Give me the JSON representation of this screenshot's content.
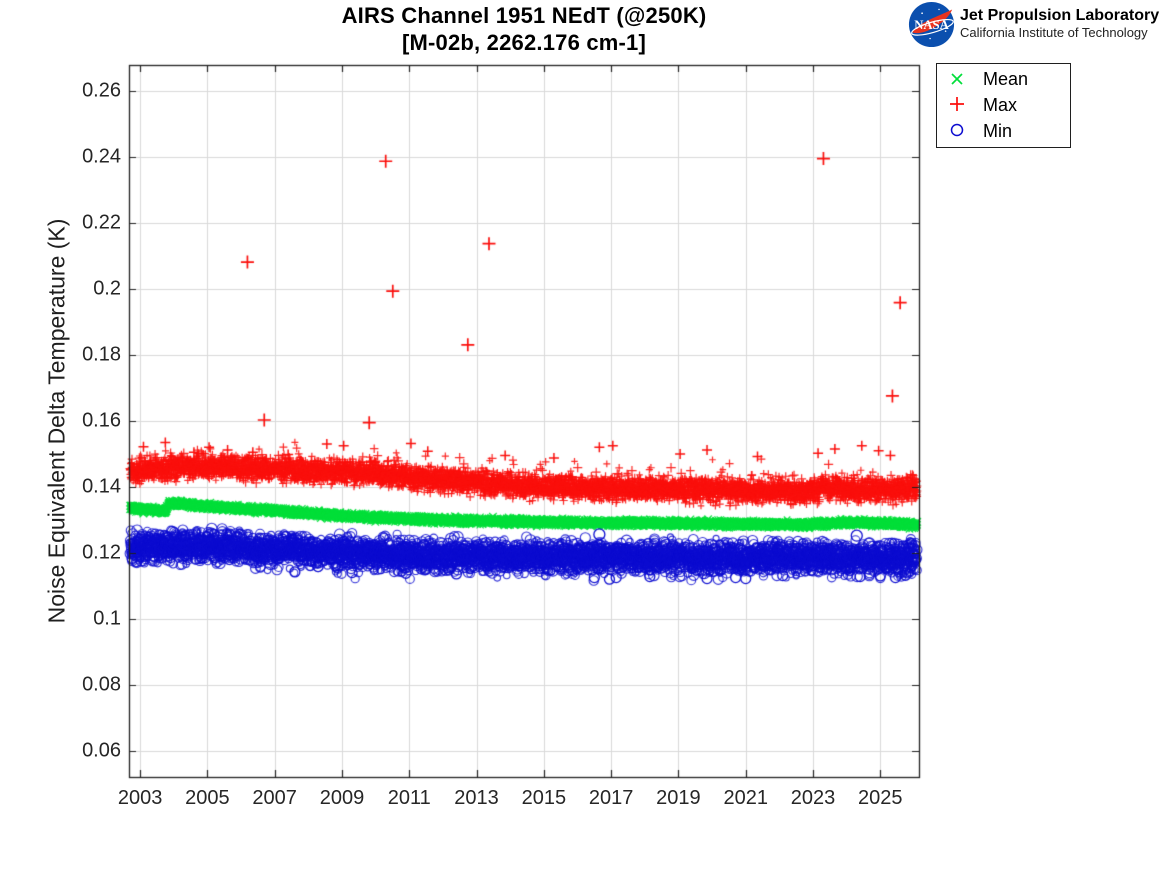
{
  "header": {
    "title_line1": "AIRS Channel 1951 NEdT (@250K)",
    "title_line2": "[M-02b, 2262.176 cm-1]"
  },
  "branding": {
    "logo_alt": "NASA",
    "org_line1": "Jet Propulsion Laboratory",
    "org_line2": "California Institute of Technology",
    "logo_blue": "#0b4fae",
    "logo_red": "#e8331f",
    "logo_text": "NASA"
  },
  "chart_data": {
    "type": "scatter",
    "title": "AIRS Channel 1951 NEdT (@250K)",
    "subtitle": "[M-02b, 2262.176 cm-1]",
    "xlabel": "",
    "ylabel": "Noise Equivalent Delta Temperature (K)",
    "xlim": [
      2002.67,
      2026.15
    ],
    "ylim": [
      0.052,
      0.268
    ],
    "x_range": [
      2002.7,
      2026.1
    ],
    "xticks": [
      2003,
      2005,
      2007,
      2009,
      2011,
      2013,
      2015,
      2017,
      2019,
      2021,
      2023,
      2025
    ],
    "ytick_values": [
      0.06,
      0.08,
      0.1,
      0.12,
      0.14,
      0.16,
      0.18,
      0.2,
      0.22,
      0.24,
      0.26
    ],
    "ytick_labels": [
      "0.06",
      "0.08",
      "0.1",
      "0.12",
      "0.14",
      "0.16",
      "0.18",
      "0.2",
      "0.22",
      "0.24",
      "0.26"
    ],
    "grid": true,
    "grid_color": "#d9d9d9",
    "axis_color": "#1f1f1f",
    "legend": {
      "position": "top-right",
      "entries": [
        "Mean",
        "Max",
        "Min"
      ]
    },
    "series": [
      {
        "name": "Mean",
        "marker": "x",
        "color": "#00df3a",
        "n": 6500,
        "sigma": 0.0005,
        "trend": [
          [
            2002.7,
            0.1337
          ],
          [
            2003.2,
            0.1332
          ],
          [
            2003.78,
            0.1326
          ],
          [
            2003.85,
            0.135
          ],
          [
            2004.4,
            0.1347
          ],
          [
            2005.0,
            0.1342
          ],
          [
            2006.0,
            0.1334
          ],
          [
            2007.0,
            0.1327
          ],
          [
            2008.0,
            0.132
          ],
          [
            2009.0,
            0.1313
          ],
          [
            2010.0,
            0.1307
          ],
          [
            2011.0,
            0.1303
          ],
          [
            2012.0,
            0.13
          ],
          [
            2013.0,
            0.1297
          ],
          [
            2014.0,
            0.1295
          ],
          [
            2015.5,
            0.1292
          ],
          [
            2017.0,
            0.1291
          ],
          [
            2018.5,
            0.129
          ],
          [
            2020.0,
            0.1289
          ],
          [
            2021.5,
            0.1287
          ],
          [
            2022.8,
            0.1286
          ],
          [
            2023.5,
            0.129
          ],
          [
            2024.5,
            0.1292
          ],
          [
            2025.3,
            0.1289
          ],
          [
            2026.1,
            0.1284
          ]
        ]
      },
      {
        "name": "Max",
        "marker": "+",
        "color": "#fb0f0c",
        "n": 5200,
        "sigma": 0.0017,
        "trend": [
          [
            2002.7,
            0.1448
          ],
          [
            2003.3,
            0.1452
          ],
          [
            2004.0,
            0.146
          ],
          [
            2004.8,
            0.1462
          ],
          [
            2005.8,
            0.1458
          ],
          [
            2007.0,
            0.1452
          ],
          [
            2008.0,
            0.1448
          ],
          [
            2009.0,
            0.1444
          ],
          [
            2010.0,
            0.1438
          ],
          [
            2011.0,
            0.143
          ],
          [
            2012.0,
            0.142
          ],
          [
            2013.0,
            0.1412
          ],
          [
            2014.0,
            0.1406
          ],
          [
            2015.0,
            0.14
          ],
          [
            2016.0,
            0.1397
          ],
          [
            2017.0,
            0.1394
          ],
          [
            2018.0,
            0.1393
          ],
          [
            2019.0,
            0.1392
          ],
          [
            2020.0,
            0.139
          ],
          [
            2021.0,
            0.1388
          ],
          [
            2022.0,
            0.1386
          ],
          [
            2023.0,
            0.1388
          ],
          [
            2023.5,
            0.1398
          ],
          [
            2024.0,
            0.139
          ],
          [
            2024.7,
            0.1392
          ],
          [
            2025.4,
            0.1388
          ],
          [
            2026.1,
            0.1398
          ]
        ],
        "outliers": [
          [
            2006.19,
            0.2082
          ],
          [
            2006.69,
            0.1603
          ],
          [
            2009.81,
            0.1595
          ],
          [
            2010.3,
            0.2388
          ],
          [
            2010.51,
            0.1994
          ],
          [
            2012.74,
            0.1831
          ],
          [
            2013.37,
            0.2138
          ],
          [
            2023.31,
            0.2396
          ],
          [
            2025.36,
            0.1676
          ],
          [
            2025.59,
            0.1959
          ]
        ],
        "scatter_highs": [
          [
            2003.1,
            0.1522
          ],
          [
            2003.75,
            0.1535
          ],
          [
            2004.6,
            0.1505
          ],
          [
            2005.05,
            0.152
          ],
          [
            2005.6,
            0.1512
          ],
          [
            2006.35,
            0.1505
          ],
          [
            2007.4,
            0.1498
          ],
          [
            2008.55,
            0.153
          ],
          [
            2009.05,
            0.1525
          ],
          [
            2011.05,
            0.1532
          ],
          [
            2011.55,
            0.1508
          ],
          [
            2013.85,
            0.1495
          ],
          [
            2015.3,
            0.1488
          ],
          [
            2016.65,
            0.152
          ],
          [
            2017.05,
            0.1525
          ],
          [
            2019.05,
            0.15
          ],
          [
            2019.85,
            0.1512
          ],
          [
            2021.35,
            0.1492
          ],
          [
            2023.15,
            0.1502
          ],
          [
            2023.65,
            0.1515
          ],
          [
            2024.45,
            0.1525
          ],
          [
            2024.95,
            0.151
          ],
          [
            2025.3,
            0.1495
          ]
        ]
      },
      {
        "name": "Min",
        "marker": "o",
        "color": "#0c0cd0",
        "n": 5200,
        "sigma": 0.0022,
        "trend": [
          [
            2002.7,
            0.1214
          ],
          [
            2003.5,
            0.1219
          ],
          [
            2004.3,
            0.1223
          ],
          [
            2005.2,
            0.122
          ],
          [
            2006.2,
            0.1214
          ],
          [
            2007.2,
            0.1208
          ],
          [
            2008.2,
            0.1203
          ],
          [
            2009.5,
            0.1198
          ],
          [
            2011.0,
            0.1193
          ],
          [
            2012.5,
            0.1191
          ],
          [
            2014.0,
            0.1189
          ],
          [
            2016.0,
            0.1187
          ],
          [
            2018.0,
            0.1186
          ],
          [
            2020.0,
            0.1185
          ],
          [
            2022.0,
            0.1184
          ],
          [
            2024.0,
            0.1184
          ],
          [
            2025.0,
            0.1183
          ],
          [
            2026.1,
            0.118
          ]
        ],
        "outliers_low": [
          [
            2007.6,
            0.1142
          ],
          [
            2009.3,
            0.114
          ],
          [
            2010.9,
            0.1138
          ],
          [
            2012.4,
            0.1136
          ],
          [
            2016.5,
            0.1125
          ],
          [
            2016.95,
            0.112
          ],
          [
            2017.15,
            0.1125
          ],
          [
            2018.15,
            0.1128
          ],
          [
            2019.85,
            0.1122
          ],
          [
            2020.7,
            0.1125
          ],
          [
            2021.0,
            0.1122
          ],
          [
            2022.1,
            0.1131
          ],
          [
            2024.4,
            0.1128
          ],
          [
            2025.0,
            0.113
          ],
          [
            2025.45,
            0.1125
          ],
          [
            2025.75,
            0.1132
          ]
        ],
        "outliers_high": [
          [
            2016.65,
            0.1256
          ],
          [
            2024.3,
            0.1252
          ]
        ]
      }
    ]
  }
}
